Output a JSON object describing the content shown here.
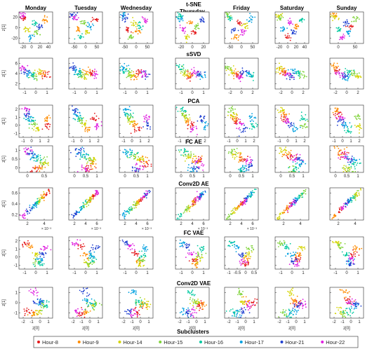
{
  "days": [
    "Monday",
    "Tuesday",
    "Wednesday",
    "Thursday",
    "Friday",
    "Saturday",
    "Sunday"
  ],
  "legend": {
    "title": "Subclusters",
    "entries": [
      {
        "label": "Hour-8",
        "color": "#e41a1c"
      },
      {
        "label": "Hour-9",
        "color": "#ff8c00"
      },
      {
        "label": "Hour-14",
        "color": "#d4d400"
      },
      {
        "label": "Hour-15",
        "color": "#7fd33a"
      },
      {
        "label": "Hour-16",
        "color": "#00c8a0"
      },
      {
        "label": "Hour-17",
        "color": "#00a0e0"
      },
      {
        "label": "Hour-21",
        "color": "#1f3fd0"
      },
      {
        "label": "Hour-22",
        "color": "#e020e0"
      }
    ]
  },
  "axes": {
    "xlabel": "z[0]",
    "ylabel": "z[1]"
  },
  "chart_data": {
    "type": "scatter",
    "title": "",
    "methods": [
      {
        "name": "t-SNE",
        "yticks": [
          "20",
          "0",
          "-20"
        ],
        "xticks_per_day": [
          [
            "-20",
            "0",
            "20",
            "40"
          ],
          [
            "-50",
            "0",
            "50"
          ],
          [
            "-50",
            "0",
            "50"
          ],
          [
            "-20",
            "0",
            "20"
          ],
          [
            "-50",
            "0",
            "50"
          ],
          [
            "-20",
            "0",
            "20",
            "40"
          ],
          [
            "0",
            "50"
          ]
        ]
      },
      {
        "name": "sSVD",
        "yticks": [
          "6",
          "4",
          "2"
        ],
        "xticks_per_day": [
          [
            "-1",
            "0",
            "1"
          ],
          [
            "-1",
            "0",
            "1"
          ],
          [
            "-1",
            "0",
            "1"
          ],
          [
            "-1",
            "0",
            "1"
          ],
          [
            "-2",
            "0",
            "2"
          ],
          [
            "-2",
            "0",
            "2"
          ],
          [
            "-2",
            "0",
            "2"
          ]
        ]
      },
      {
        "name": "PCA",
        "yticks": [
          "2",
          "1",
          "0",
          "-1"
        ],
        "xticks_per_day": [
          [
            "-1",
            "0",
            "1",
            "2"
          ],
          [
            "-1",
            "0",
            "1",
            "2"
          ],
          [
            "-1",
            "0",
            "1",
            "2"
          ],
          [
            "-1",
            "0",
            "1",
            "2"
          ],
          [
            "-1",
            "0",
            "1",
            "2"
          ],
          [
            "-1",
            "0",
            "1",
            "2"
          ],
          [
            "-1",
            "0",
            "1",
            "2"
          ]
        ]
      },
      {
        "name": "FC AE",
        "yticks": [
          "1",
          "0.5",
          "0"
        ],
        "xticks_per_day": [
          [
            "0",
            "0.5"
          ],
          [
            "0",
            "0.5",
            "1"
          ],
          [
            "0",
            "0.5",
            "1"
          ],
          [
            "0",
            "0.5",
            "1"
          ],
          [
            "0",
            "0.5",
            "1"
          ],
          [
            "0",
            "0.5",
            "1"
          ],
          [
            "0",
            "0.5",
            "1"
          ]
        ]
      },
      {
        "name": "Conv2D AE",
        "yticks": [
          "0.6",
          "0.4",
          "0.2"
        ],
        "exponent": "× 10⁻³",
        "xticks_per_day": [
          [
            "2",
            "4"
          ],
          [
            "2",
            "4",
            "6"
          ],
          [
            "2",
            "4",
            "6"
          ],
          [
            "2",
            "4",
            "6"
          ],
          [
            "2",
            "4",
            "6"
          ],
          [
            "2",
            "4"
          ],
          [
            "2",
            "4"
          ]
        ]
      },
      {
        "name": "FC VAE",
        "yticks": [
          "2",
          "1",
          "0",
          "-1"
        ],
        "xticks_per_day": [
          [
            "-1",
            "0",
            "1"
          ],
          [
            "-1",
            "0",
            "1"
          ],
          [
            "-1",
            "0",
            "1"
          ],
          [
            "-1",
            "0",
            "1"
          ],
          [
            "-1",
            "-0.5",
            "0",
            "0.5"
          ],
          [
            "-1",
            "0",
            "1"
          ],
          [
            "-1",
            "0",
            "1"
          ]
        ]
      },
      {
        "name": "Conv2D VAE",
        "yticks": [
          "1",
          "0",
          "-1"
        ],
        "xticks_per_day": [
          [
            "-2",
            "-1",
            "0",
            "1"
          ],
          [
            "-2",
            "-1",
            "0",
            "1"
          ],
          [
            "-2",
            "-1",
            "0",
            "1"
          ],
          [
            "-2",
            "-1",
            "0",
            "1"
          ],
          [
            "-2",
            "-1",
            "0",
            "1"
          ],
          [
            "-2",
            "-1",
            "0",
            "1"
          ],
          [
            "-2",
            "-1",
            "0",
            "1"
          ]
        ]
      }
    ]
  }
}
